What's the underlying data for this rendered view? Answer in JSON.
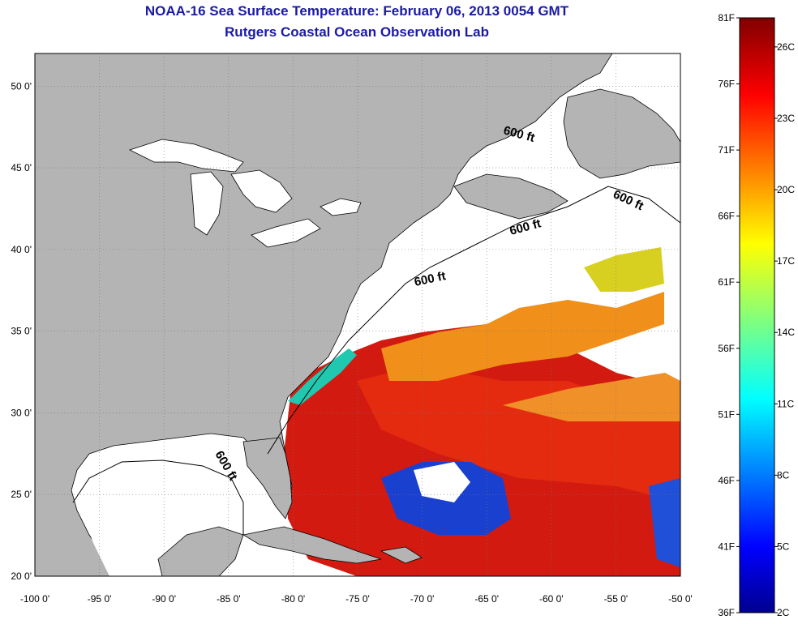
{
  "title": "NOAA-16 Sea Surface Temperature:  February 06, 2013 0054 GMT",
  "subtitle": "Rutgers Coastal Ocean Observation Lab",
  "map": {
    "lon_range": [
      -100,
      -50
    ],
    "lat_range": [
      20,
      52
    ],
    "lon_ticks": [
      "-100 0'",
      "-95 0'",
      "-90 0'",
      "-85 0'",
      "-80 0'",
      "-75 0'",
      "-70 0'",
      "-65 0'",
      "-60 0'",
      "-55 0'",
      "-50 0'"
    ],
    "lat_ticks": [
      "20 0'",
      "25 0'",
      "30 0'",
      "35 0'",
      "40 0'",
      "45 0'",
      "50 0'"
    ],
    "isobath_label": "600 ft",
    "colors": {
      "land": "#b4b4b4",
      "no_data": "#ffffff",
      "title": "#1a1aa6"
    }
  },
  "colorbar": {
    "fahrenheit_labels": [
      "81F",
      "76F",
      "71F",
      "66F",
      "61F",
      "56F",
      "51F",
      "46F",
      "41F",
      "36F"
    ],
    "celsius_labels": [
      "26C",
      "23C",
      "20C",
      "17C",
      "14C",
      "11C",
      "8C",
      "5C",
      "2C"
    ],
    "colormap": "jet"
  }
}
